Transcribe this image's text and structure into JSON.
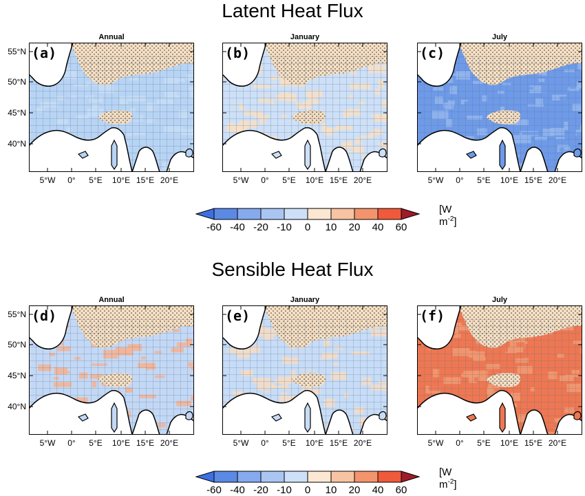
{
  "titles": {
    "latent": "Latent Heat Flux",
    "sensible": "Sensible Heat Flux"
  },
  "panels": [
    {
      "letter": "(a)",
      "title": "Annual",
      "row": 0,
      "col": 0,
      "base": "#b8d4f4",
      "pattern": "#c7ddf6",
      "hatch": true
    },
    {
      "letter": "(b)",
      "title": "January",
      "row": 0,
      "col": 1,
      "base": "#cde0f7",
      "pattern": "#f6dfc8",
      "hatch": true
    },
    {
      "letter": "(c)",
      "title": "July",
      "row": 0,
      "col": 2,
      "base": "#6e9ae8",
      "pattern": "#94b6ee",
      "hatch": true
    },
    {
      "letter": "(d)",
      "title": "Annual",
      "row": 1,
      "col": 0,
      "base": "#c3d8f5",
      "pattern": "#f4b393",
      "hatch": true
    },
    {
      "letter": "(e)",
      "title": "January",
      "row": 1,
      "col": 1,
      "base": "#c7dcf6",
      "pattern": "#f5dcc6",
      "hatch": true
    },
    {
      "letter": "(f)",
      "title": "July",
      "row": 1,
      "col": 2,
      "base": "#ee7752",
      "pattern": "#f29a72",
      "hatch": true
    }
  ],
  "lat_labels": [
    "55°N",
    "50°N",
    "45°N",
    "40°N"
  ],
  "lon_labels": [
    "5°W",
    "0°",
    "5°E",
    "10°E",
    "15°E",
    "20°E"
  ],
  "colorbar": {
    "ticks": [
      "-60",
      "-40",
      "-20",
      "-10",
      "0",
      "10",
      "20",
      "40",
      "60"
    ],
    "colors": [
      "#5b8ae4",
      "#86aaee",
      "#a9c6f3",
      "#cde0f8",
      "#fbe7d2",
      "#f7c3a2",
      "#f3946d",
      "#ef5a3b"
    ],
    "low_color": "#3d6fe0",
    "high_color": "#a01a28",
    "units_base": "[W m",
    "units_exp": "-2",
    "units_close": "]"
  }
}
